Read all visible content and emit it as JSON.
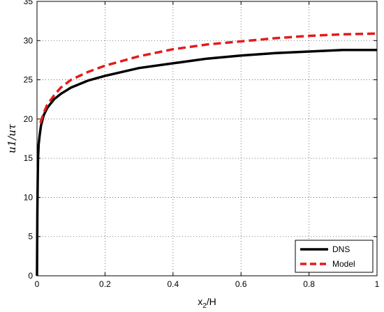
{
  "chart_data": {
    "type": "line",
    "title": "",
    "xlabel": "x",
    "xlabel_sub": "2",
    "xlabel_suffix": "/H",
    "ylabel": "u1/uτ",
    "xlim": [
      0,
      1
    ],
    "ylim": [
      0,
      35
    ],
    "xticks": [
      0,
      0.2,
      0.4,
      0.6,
      0.8,
      1
    ],
    "xtick_labels": [
      "0",
      "0.2",
      "0.4",
      "0.6",
      "0.8",
      "1"
    ],
    "yticks": [
      0,
      5,
      10,
      15,
      20,
      25,
      30,
      35
    ],
    "ytick_labels": [
      "0",
      "5",
      "10",
      "15",
      "20",
      "25",
      "30",
      "35"
    ],
    "grid": true,
    "legend_position": "bottom-right",
    "series": [
      {
        "name": "DNS",
        "color": "#000000",
        "style": "solid",
        "x": [
          0,
          0.001,
          0.002,
          0.003,
          0.005,
          0.008,
          0.012,
          0.02,
          0.03,
          0.05,
          0.07,
          0.1,
          0.15,
          0.2,
          0.3,
          0.4,
          0.5,
          0.6,
          0.7,
          0.8,
          0.9,
          1.0
        ],
        "y": [
          0,
          8,
          12,
          15,
          16.8,
          18,
          19.2,
          20.5,
          21.4,
          22.5,
          23.2,
          24.0,
          24.9,
          25.5,
          26.5,
          27.1,
          27.7,
          28.1,
          28.4,
          28.6,
          28.8,
          28.8
        ]
      },
      {
        "name": "Model",
        "color": "#e41a1c",
        "style": "dashed",
        "x": [
          0.01,
          0.02,
          0.03,
          0.05,
          0.07,
          0.1,
          0.15,
          0.2,
          0.3,
          0.4,
          0.5,
          0.6,
          0.7,
          0.8,
          0.9,
          1.0
        ],
        "y": [
          19.5,
          20.8,
          21.8,
          23.0,
          24.0,
          25.0,
          26.0,
          26.8,
          28.0,
          28.9,
          29.5,
          29.9,
          30.3,
          30.6,
          30.8,
          30.9
        ]
      }
    ]
  }
}
